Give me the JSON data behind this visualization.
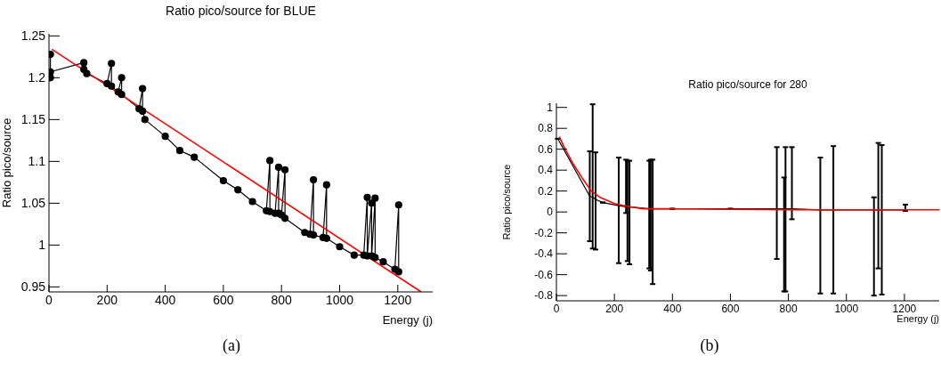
{
  "chart_data": [
    {
      "type": "line",
      "title": "Ratio pico/source for BLUE",
      "xlabel": "Energy (j)",
      "ylabel": "Ratio pico/source",
      "xlim": [
        0,
        1320
      ],
      "xticks": [
        0,
        200,
        400,
        600,
        800,
        1000,
        1200
      ],
      "ylim": [
        0.944,
        1.2525
      ],
      "yticks": [
        0.95,
        1,
        1.05,
        1.1,
        1.15,
        1.2,
        1.25
      ],
      "grid": false,
      "legend": false,
      "line_style": "solid",
      "annotations": [
        "(a)"
      ],
      "series": [
        {
          "color": "#000000",
          "marker": "circle",
          "x": [
            5,
            5,
            5,
            120,
            120,
            130,
            200,
            215,
            215,
            238,
            250,
            250,
            310,
            322,
            322,
            330,
            400,
            450,
            500,
            600,
            650,
            700,
            748,
            760,
            760,
            778,
            790,
            790,
            800,
            812,
            812,
            880,
            898,
            910,
            910,
            943,
            955,
            955,
            1000,
            1050,
            1083,
            1095,
            1095,
            1110,
            1110,
            1122,
            1122,
            1150,
            1190,
            1203,
            1203
          ],
          "values": [
            1.228,
            1.2,
            1.207,
            1.218,
            1.21,
            1.205,
            1.193,
            1.217,
            1.19,
            1.183,
            1.2,
            1.18,
            1.163,
            1.187,
            1.16,
            1.15,
            1.13,
            1.113,
            1.105,
            1.077,
            1.066,
            1.052,
            1.041,
            1.101,
            1.04,
            1.038,
            1.093,
            1.038,
            1.036,
            1.09,
            1.032,
            1.015,
            1.013,
            1.078,
            1.012,
            1.009,
            1.072,
            1.008,
            0.998,
            0.988,
            0.988,
            1.057,
            0.987,
            1.05,
            0.987,
            1.056,
            0.985,
            0.98,
            0.971,
            1.048,
            0.968
          ]
        },
        {
          "color": "#ff0000",
          "marker": "none",
          "x": [
            10,
            1280
          ],
          "values": [
            1.234,
            0.944
          ]
        }
      ]
    },
    {
      "type": "line",
      "title": "Ratio pico/source for 280",
      "xlabel": "Energy (j)",
      "ylabel": "Ratio pico/source",
      "xlim": [
        0,
        1320
      ],
      "xticks": [
        0,
        200,
        400,
        600,
        800,
        1000,
        1200
      ],
      "ylim": [
        -0.85,
        1.04
      ],
      "yticks": [
        -0.8,
        -0.6,
        -0.4,
        -0.2,
        0,
        0.2,
        0.4,
        0.6,
        0.8,
        1
      ],
      "grid": false,
      "legend": false,
      "line_style": "solid",
      "annotations": [
        "(b)"
      ],
      "series": [
        {
          "color": "#000000",
          "marker": "none",
          "x": [
            5,
            115,
            125,
            135,
            160,
            215,
            240,
            245,
            252,
            320,
            325,
            332,
            400,
            600,
            760,
            785,
            790,
            812,
            910,
            955,
            1095,
            1110,
            1122,
            1203
          ],
          "values": [
            0.7,
            0.15,
            0.14,
            0.12,
            0.09,
            0.06,
            0.05,
            0.05,
            0.05,
            0.03,
            0.03,
            0.03,
            0.03,
            0.03,
            0.03,
            0.03,
            0.03,
            0.03,
            0.02,
            0.02,
            0.02,
            0.02,
            0.02,
            0.02
          ],
          "errors": [
            null,
            [
              -0.28,
              0.58
            ],
            [
              -0.35,
              1.03
            ],
            [
              -0.36,
              0.57
            ],
            null,
            [
              -0.49,
              0.52
            ],
            [
              -0.01,
              0.5
            ],
            [
              -0.47,
              0.49
            ],
            [
              -0.5,
              0.49
            ],
            [
              -0.54,
              0.49
            ],
            [
              -0.56,
              0.5
            ],
            [
              -0.69,
              0.5
            ],
            null,
            null,
            [
              -0.45,
              0.62
            ],
            [
              -0.76,
              0.33
            ],
            [
              -0.76,
              0.62
            ],
            [
              -0.07,
              0.62
            ],
            [
              -0.78,
              0.52
            ],
            [
              -0.78,
              0.63
            ],
            [
              -0.8,
              0.14
            ],
            [
              -0.54,
              0.66
            ],
            [
              -0.79,
              0.64
            ],
            [
              0.01,
              0.07
            ]
          ]
        },
        {
          "color": "#ff0000",
          "marker": "none",
          "x": [
            10,
            30,
            60,
            90,
            120,
            150,
            200,
            250,
            300,
            400,
            800,
            1320
          ],
          "values": [
            0.72,
            0.6,
            0.45,
            0.32,
            0.2,
            0.14,
            0.08,
            0.05,
            0.03,
            0.03,
            0.02,
            0.02
          ]
        }
      ]
    }
  ]
}
